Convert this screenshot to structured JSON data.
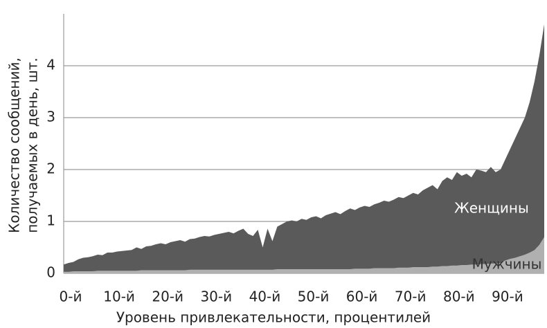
{
  "chart_data": {
    "type": "area",
    "y_label": [
      "Количество сообщений,",
      "получаемых в день, шт."
    ],
    "x_label": "Уровень привлекательности, процентилей",
    "x": [
      0,
      1,
      2,
      3,
      4,
      5,
      6,
      7,
      8,
      9,
      10,
      11,
      12,
      13,
      14,
      15,
      16,
      17,
      18,
      19,
      20,
      21,
      22,
      23,
      24,
      25,
      26,
      27,
      28,
      29,
      30,
      31,
      32,
      33,
      34,
      35,
      36,
      37,
      38,
      39,
      40,
      41,
      42,
      43,
      44,
      45,
      46,
      47,
      48,
      49,
      50,
      51,
      52,
      53,
      54,
      55,
      56,
      57,
      58,
      59,
      60,
      61,
      62,
      63,
      64,
      65,
      66,
      67,
      68,
      69,
      70,
      71,
      72,
      73,
      74,
      75,
      76,
      77,
      78,
      79,
      80,
      81,
      82,
      83,
      84,
      85,
      86,
      87,
      88,
      89,
      90,
      91,
      92,
      93,
      94,
      95,
      96,
      97,
      98,
      99
    ],
    "xlim": [
      0,
      99
    ],
    "xticks": [
      {
        "value": 0,
        "label": "0-й"
      },
      {
        "value": 10,
        "label": "10-й"
      },
      {
        "value": 20,
        "label": "20-й"
      },
      {
        "value": 30,
        "label": "30-й"
      },
      {
        "value": 40,
        "label": "40-й"
      },
      {
        "value": 50,
        "label": "50-й"
      },
      {
        "value": 60,
        "label": "60-й"
      },
      {
        "value": 70,
        "label": "70-й"
      },
      {
        "value": 80,
        "label": "80-й"
      },
      {
        "value": 90,
        "label": "90-й"
      }
    ],
    "ylim": [
      0,
      5
    ],
    "yticks": [
      0,
      1,
      2,
      3,
      4
    ],
    "grid": true,
    "series": [
      {
        "name": "Женщины",
        "color": "#5a5a5a",
        "values": [
          0.17,
          0.2,
          0.22,
          0.27,
          0.3,
          0.31,
          0.33,
          0.36,
          0.35,
          0.4,
          0.4,
          0.42,
          0.43,
          0.44,
          0.45,
          0.5,
          0.47,
          0.52,
          0.53,
          0.56,
          0.58,
          0.56,
          0.6,
          0.62,
          0.64,
          0.61,
          0.66,
          0.67,
          0.7,
          0.72,
          0.71,
          0.74,
          0.76,
          0.78,
          0.8,
          0.77,
          0.82,
          0.86,
          0.76,
          0.72,
          0.84,
          0.5,
          0.86,
          0.62,
          0.9,
          0.95,
          1.0,
          1.02,
          1.0,
          1.05,
          1.03,
          1.08,
          1.1,
          1.06,
          1.12,
          1.15,
          1.18,
          1.14,
          1.2,
          1.25,
          1.22,
          1.27,
          1.3,
          1.28,
          1.33,
          1.36,
          1.4,
          1.38,
          1.42,
          1.47,
          1.45,
          1.5,
          1.55,
          1.52,
          1.6,
          1.65,
          1.7,
          1.62,
          1.78,
          1.85,
          1.8,
          1.95,
          1.88,
          1.92,
          1.85,
          2.0,
          1.98,
          1.95,
          2.05,
          1.95,
          2.0,
          2.2,
          2.4,
          2.6,
          2.8,
          3.0,
          3.3,
          3.7,
          4.2,
          4.8
        ]
      },
      {
        "name": "Мужчины",
        "color": "#b0b0b0",
        "values": [
          0.03,
          0.03,
          0.04,
          0.04,
          0.04,
          0.04,
          0.04,
          0.05,
          0.05,
          0.05,
          0.05,
          0.05,
          0.05,
          0.05,
          0.05,
          0.05,
          0.06,
          0.06,
          0.06,
          0.06,
          0.06,
          0.06,
          0.06,
          0.06,
          0.06,
          0.06,
          0.07,
          0.07,
          0.07,
          0.07,
          0.07,
          0.07,
          0.07,
          0.07,
          0.07,
          0.07,
          0.07,
          0.07,
          0.07,
          0.07,
          0.07,
          0.07,
          0.07,
          0.07,
          0.08,
          0.08,
          0.08,
          0.08,
          0.08,
          0.08,
          0.08,
          0.08,
          0.08,
          0.08,
          0.08,
          0.08,
          0.08,
          0.08,
          0.08,
          0.08,
          0.09,
          0.09,
          0.09,
          0.09,
          0.1,
          0.1,
          0.1,
          0.1,
          0.1,
          0.11,
          0.11,
          0.11,
          0.12,
          0.12,
          0.12,
          0.12,
          0.13,
          0.13,
          0.14,
          0.14,
          0.15,
          0.15,
          0.16,
          0.16,
          0.17,
          0.17,
          0.18,
          0.18,
          0.19,
          0.19,
          0.2,
          0.25,
          0.28,
          0.3,
          0.33,
          0.36,
          0.4,
          0.45,
          0.55,
          0.7
        ]
      }
    ]
  }
}
